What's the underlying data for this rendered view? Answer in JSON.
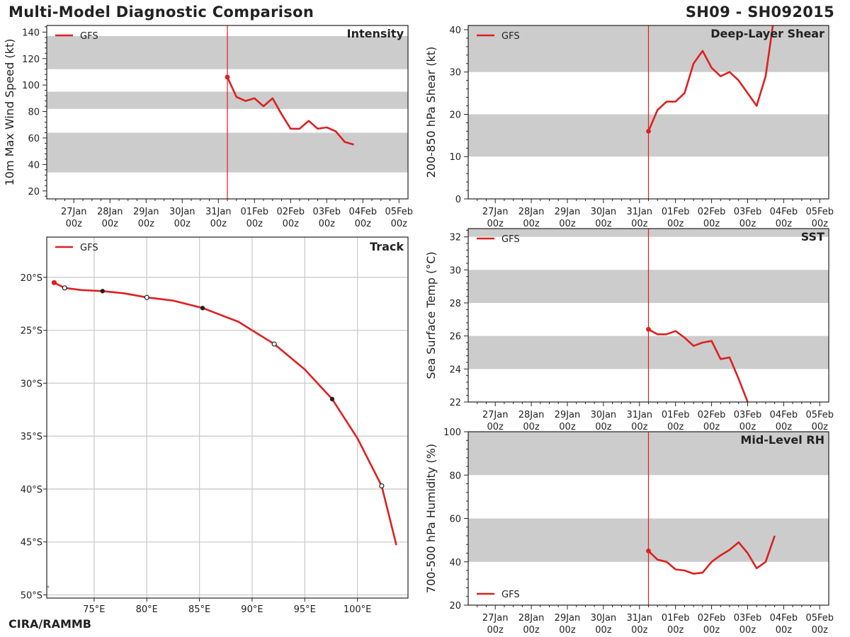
{
  "header": {
    "title": "Multi-Model Diagnostic Comparison",
    "storm_id": "SH09 - SH092015"
  },
  "footer": {
    "credit": "CIRA/RAMMB"
  },
  "colors": {
    "model": "#dd2020",
    "band": "#cccccc",
    "grid": "#cccccc",
    "axis": "#222222"
  },
  "time_axis": {
    "ticks": [
      {
        "day": 0,
        "l1": "27Jan",
        "l2": "00z"
      },
      {
        "day": 1,
        "l1": "28Jan",
        "l2": "00z"
      },
      {
        "day": 2,
        "l1": "29Jan",
        "l2": "00z"
      },
      {
        "day": 3,
        "l1": "30Jan",
        "l2": "00z"
      },
      {
        "day": 4,
        "l1": "31Jan",
        "l2": "00z"
      },
      {
        "day": 5,
        "l1": "01Feb",
        "l2": "00z"
      },
      {
        "day": 6,
        "l1": "02Feb",
        "l2": "00z"
      },
      {
        "day": 7,
        "l1": "03Feb",
        "l2": "00z"
      },
      {
        "day": 8,
        "l1": "04Feb",
        "l2": "00z"
      },
      {
        "day": 9,
        "l1": "05Feb",
        "l2": "00z"
      }
    ],
    "current_time_day": 4.25
  },
  "chart_data": [
    {
      "id": "intensity",
      "type": "line",
      "title": "Intensity",
      "ylabel": "10m Max Wind Speed (kt)",
      "xlabel": "",
      "xlim": [
        -0.75,
        9.25
      ],
      "ylim": [
        14,
        145
      ],
      "yticks": [
        20,
        40,
        60,
        80,
        100,
        120,
        140
      ],
      "bands": [
        [
          34,
          64
        ],
        [
          82,
          95
        ],
        [
          112,
          137
        ]
      ],
      "legend": "top-left",
      "series": [
        {
          "name": "GFS",
          "x": [
            4.25,
            4.5,
            4.75,
            5.0,
            5.25,
            5.5,
            5.75,
            6.0,
            6.25,
            6.5,
            6.75,
            7.0,
            7.25,
            7.5,
            7.75
          ],
          "y": [
            106,
            91,
            88,
            90,
            84,
            90,
            78,
            67,
            67,
            73,
            67,
            68,
            65,
            57,
            55
          ]
        }
      ]
    },
    {
      "id": "shear",
      "type": "line",
      "title": "Deep-Layer Shear",
      "ylabel": "200-850 hPa Shear (kt)",
      "xlabel": "",
      "xlim": [
        -0.75,
        9.25
      ],
      "ylim": [
        0,
        41
      ],
      "yticks": [
        0,
        10,
        20,
        30,
        40
      ],
      "bands": [
        [
          10,
          20
        ],
        [
          30,
          41
        ]
      ],
      "legend": "top-left",
      "series": [
        {
          "name": "GFS",
          "x": [
            4.25,
            4.5,
            4.75,
            5.0,
            5.25,
            5.5,
            5.75,
            6.0,
            6.25,
            6.5,
            6.75,
            7.0,
            7.25,
            7.5,
            7.7
          ],
          "y": [
            16,
            21,
            23,
            23,
            25,
            32,
            35,
            31,
            29,
            30,
            28,
            25,
            22,
            29,
            41
          ]
        }
      ]
    },
    {
      "id": "track",
      "type": "line",
      "title": "Track",
      "xlabel": "",
      "ylabel": "",
      "xlim": [
        70.5,
        104.8
      ],
      "ylim": [
        -50.3,
        -16.2
      ],
      "xticks": [
        75,
        80,
        85,
        90,
        95,
        100
      ],
      "xticklabels": [
        "75°E",
        "80°E",
        "85°E",
        "90°E",
        "95°E",
        "100°E"
      ],
      "yticks": [
        -20,
        -25,
        -30,
        -35,
        -40,
        -45,
        -50
      ],
      "yticklabels": [
        "20°S",
        "25°S",
        "30°S",
        "35°S",
        "40°S",
        "45°S",
        "50°S"
      ],
      "grid": true,
      "legend": "top-left",
      "series": [
        {
          "name": "GFS",
          "lon": [
            71.2,
            72.2,
            73.8,
            75.8,
            77.8,
            80.0,
            82.5,
            85.3,
            88.7,
            92.1,
            95.0,
            97.6,
            100.0,
            102.3,
            103.7
          ],
          "lat": [
            -20.5,
            -21.0,
            -21.2,
            -21.3,
            -21.5,
            -21.9,
            -22.2,
            -22.9,
            -24.2,
            -26.3,
            -28.7,
            -31.5,
            -35.2,
            -39.7,
            -45.3
          ]
        }
      ],
      "markers": [
        {
          "lon": 71.2,
          "lat": -20.5,
          "kind": "start"
        },
        {
          "lon": 72.2,
          "lat": -21.0,
          "kind": "open"
        },
        {
          "lon": 75.8,
          "lat": -21.3,
          "kind": "filled"
        },
        {
          "lon": 80.0,
          "lat": -21.9,
          "kind": "open"
        },
        {
          "lon": 85.3,
          "lat": -22.9,
          "kind": "filled"
        },
        {
          "lon": 92.1,
          "lat": -26.3,
          "kind": "open"
        },
        {
          "lon": 97.6,
          "lat": -31.5,
          "kind": "filled"
        },
        {
          "lon": 102.3,
          "lat": -39.7,
          "kind": "open"
        }
      ]
    },
    {
      "id": "sst",
      "type": "line",
      "title": "SST",
      "ylabel": "Sea Surface Temp (°C)",
      "xlabel": "",
      "xlim": [
        -0.75,
        9.25
      ],
      "ylim": [
        22,
        32.5
      ],
      "yticks": [
        22,
        24,
        26,
        28,
        30,
        32
      ],
      "bands": [
        [
          24,
          26
        ],
        [
          28,
          30
        ],
        [
          32,
          32.5
        ]
      ],
      "legend": "top-left",
      "series": [
        {
          "name": "GFS",
          "x": [
            4.25,
            4.5,
            4.75,
            5.0,
            5.25,
            5.5,
            5.75,
            6.0,
            6.25,
            6.5,
            6.75,
            7.0
          ],
          "y": [
            26.4,
            26.1,
            26.1,
            26.3,
            25.9,
            25.4,
            25.6,
            25.7,
            24.6,
            24.7,
            23.4,
            22.0
          ]
        }
      ]
    },
    {
      "id": "rh",
      "type": "line",
      "title": "Mid-Level RH",
      "ylabel": "700-500 hPa Humidity (%)",
      "xlabel": "",
      "xlim": [
        -0.75,
        9.25
      ],
      "ylim": [
        20,
        100
      ],
      "yticks": [
        20,
        40,
        60,
        80,
        100
      ],
      "bands": [
        [
          40,
          60
        ],
        [
          80,
          100
        ]
      ],
      "legend": "bottom-left",
      "series": [
        {
          "name": "GFS",
          "x": [
            4.25,
            4.5,
            4.75,
            5.0,
            5.25,
            5.5,
            5.75,
            6.0,
            6.25,
            6.5,
            6.75,
            7.0,
            7.25,
            7.5,
            7.75
          ],
          "y": [
            45,
            41,
            40,
            36.5,
            36,
            34.5,
            35,
            40,
            43,
            45.5,
            49,
            44,
            37,
            40,
            52
          ]
        }
      ]
    }
  ]
}
